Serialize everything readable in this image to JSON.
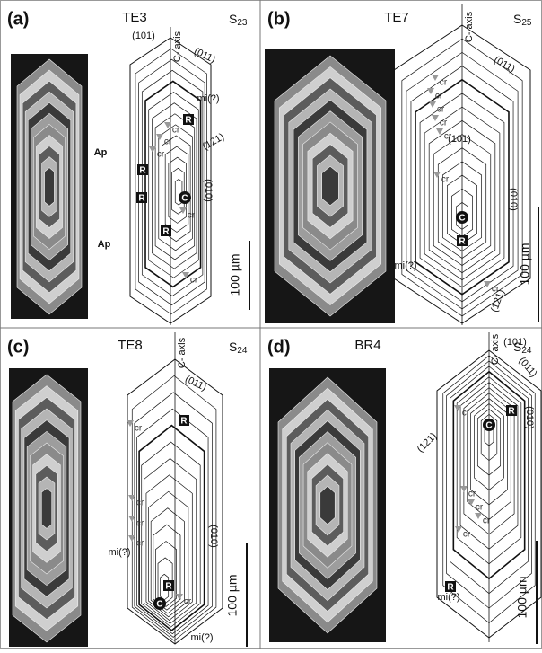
{
  "panels": [
    {
      "label": "(a)",
      "sample": "TE3",
      "sector_symbol": "S",
      "sector_index": "23",
      "axis_label": "C- axis",
      "scale_label": "100 µm",
      "annotations": [
        "(101)",
        "(011)",
        "mi(?)",
        "(121)",
        "Ap",
        "(010)",
        "Ap"
      ],
      "markers": [
        "R",
        "R",
        "R",
        "R",
        "cr",
        "cr",
        "cr",
        "cr",
        "cr",
        "C"
      ]
    },
    {
      "label": "(b)",
      "sample": "TE7",
      "sector_symbol": "S",
      "sector_index": "25",
      "axis_label": "C- axis",
      "scale_label": "100 µm",
      "annotations": [
        "(011)",
        "(101)",
        "mi(?)",
        "(010)",
        "(121)"
      ],
      "markers": [
        "cr",
        "cr",
        "cr",
        "cr",
        "cr",
        "cr",
        "C",
        "R",
        "cr"
      ]
    },
    {
      "label": "(c)",
      "sample": "TE8",
      "sector_symbol": "S",
      "sector_index": "24",
      "axis_label": "C- axis",
      "scale_label": "100 µm",
      "annotations": [
        "(011)",
        "(010)",
        "mi(?)",
        "mi(?)"
      ],
      "markers": [
        "R",
        "cr",
        "cr",
        "cr",
        "cr",
        "R",
        "cr",
        "C"
      ]
    },
    {
      "label": "(d)",
      "sample": "BR4",
      "sector_symbol": "S",
      "sector_index": "24",
      "axis_label": "C- axis",
      "scale_label": "100 µm",
      "annotations": [
        "(101)",
        "(011)",
        "(010)",
        "(121)",
        "mi(?)"
      ],
      "markers": [
        "cr",
        "C",
        "R",
        "cr",
        "cr",
        "cr",
        "cr",
        "R"
      ]
    }
  ]
}
